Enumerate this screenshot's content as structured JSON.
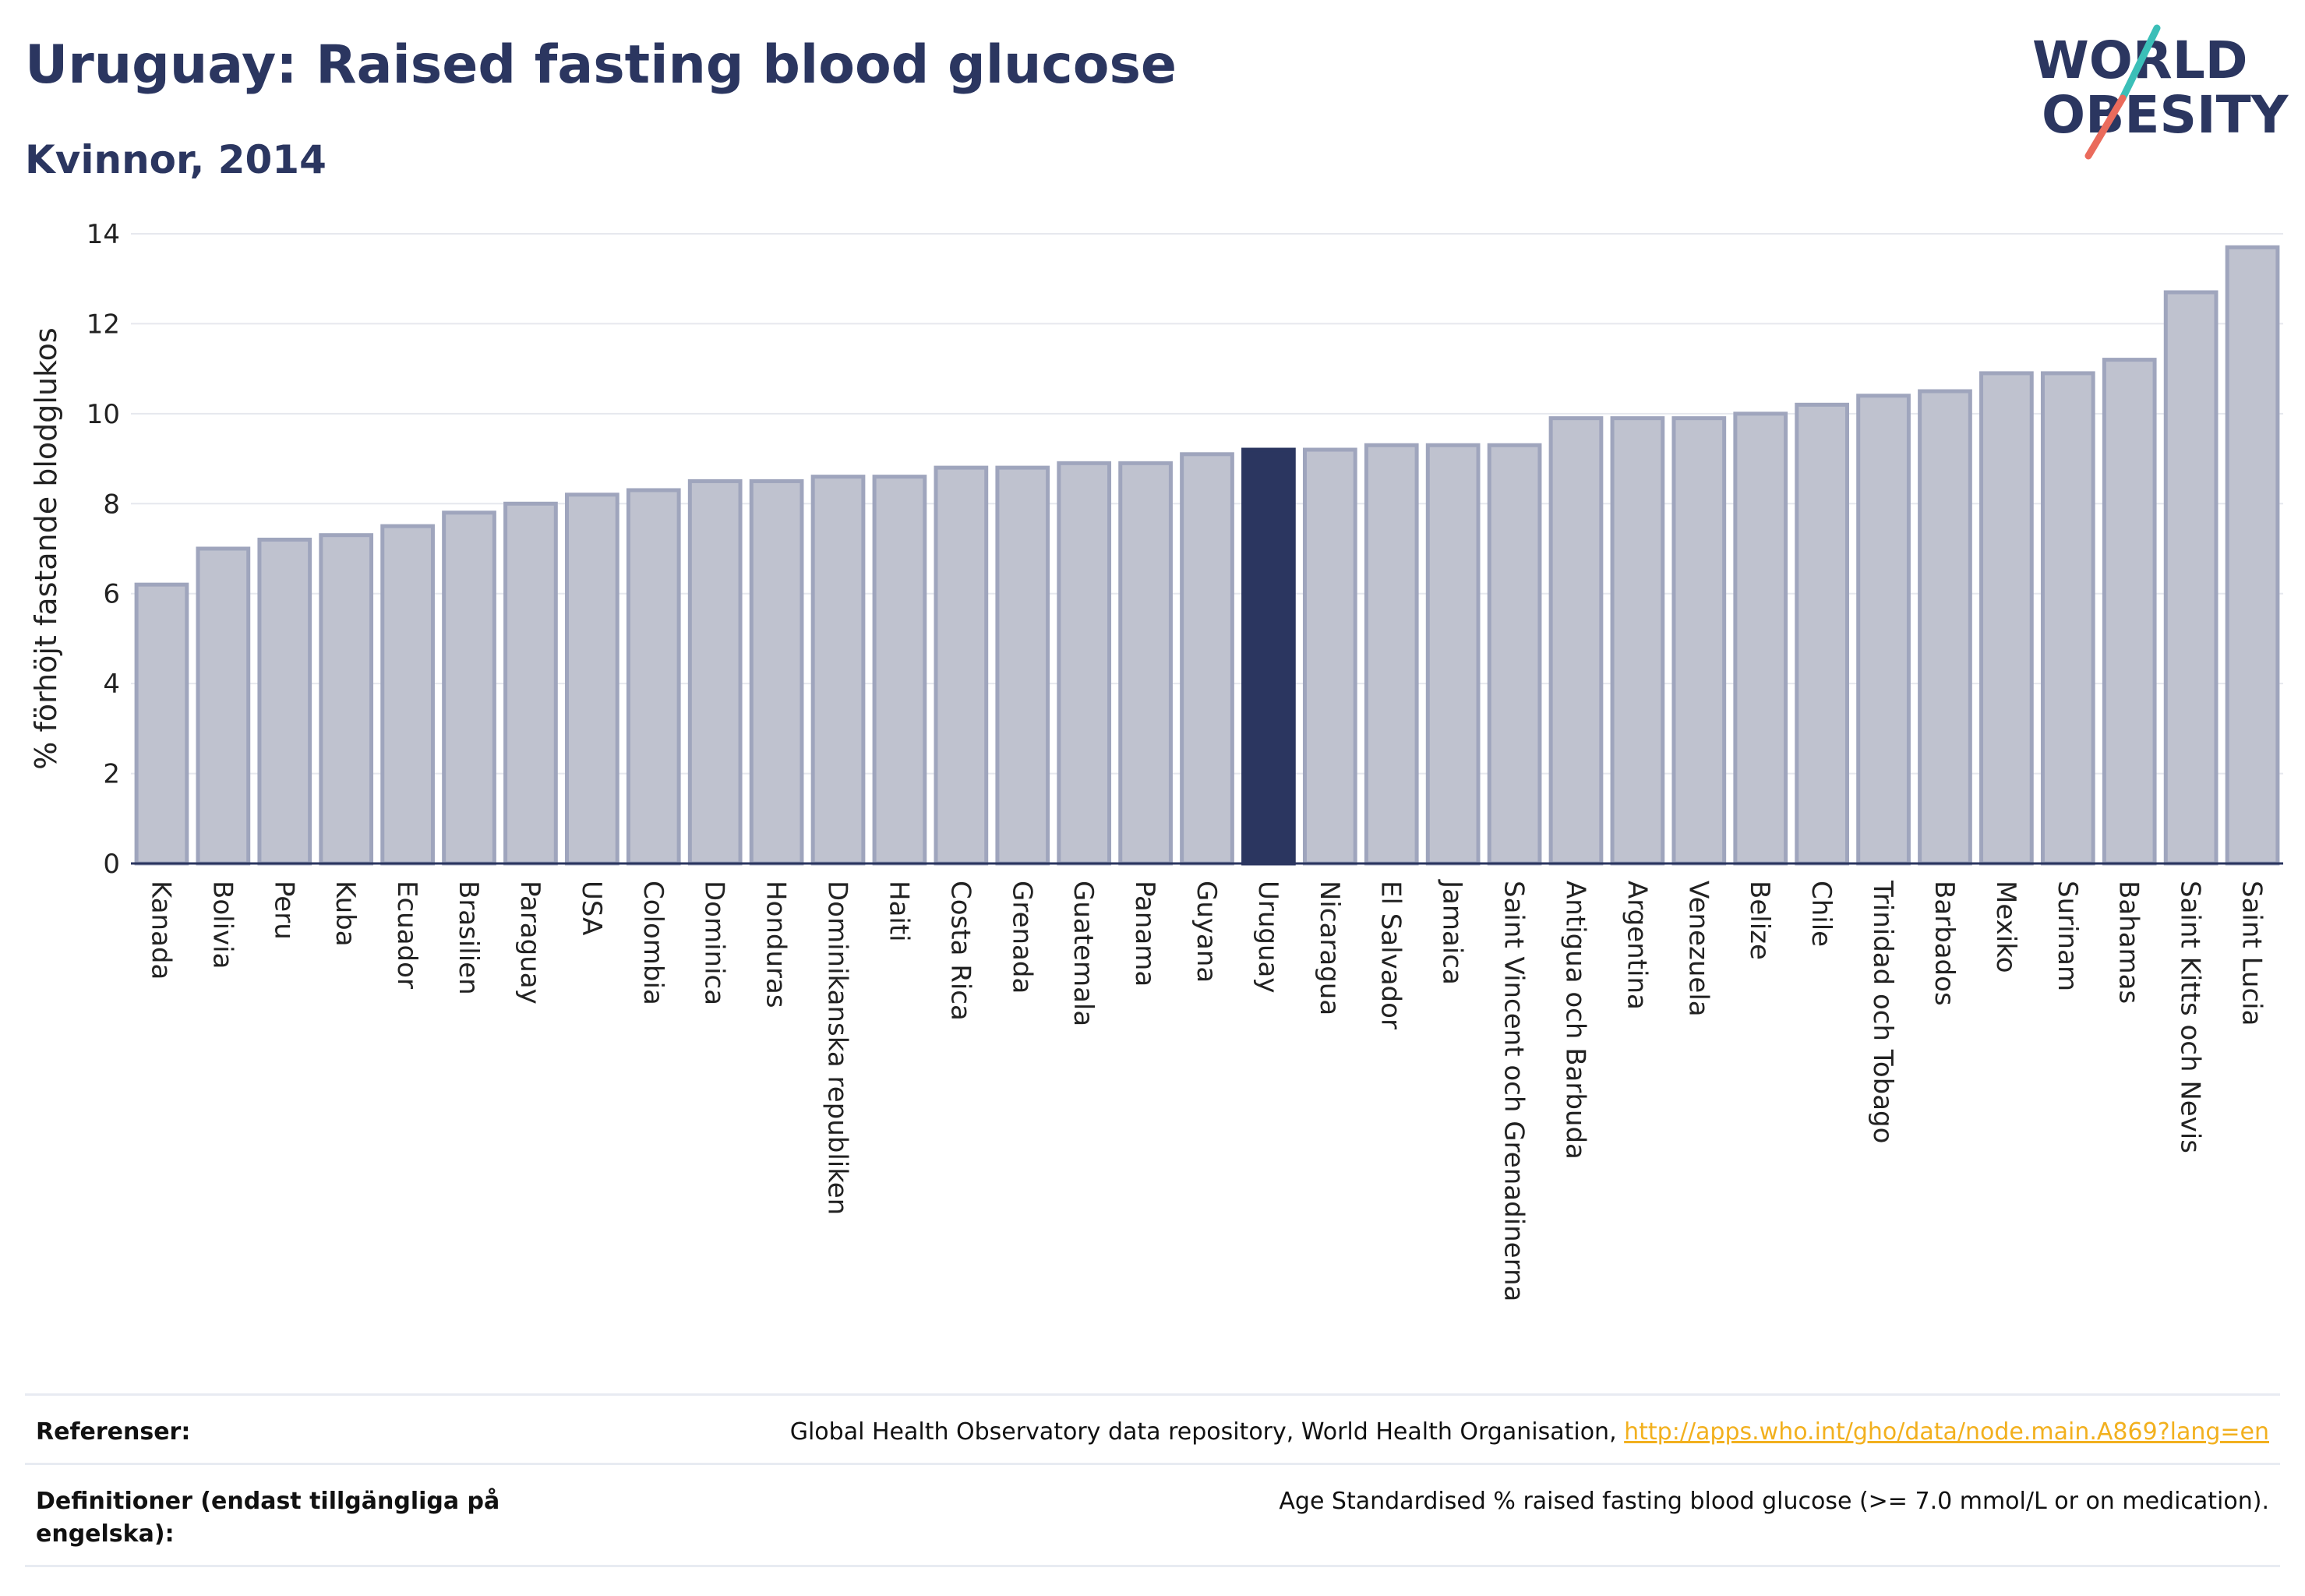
{
  "header": {
    "title": "Uruguay: Raised fasting blood glucose",
    "subtitle": "Kvinnor, 2014"
  },
  "logo": {
    "line1": "WORLD",
    "line2": "OBESITY",
    "colors": {
      "text": "#2b3660",
      "slash_teal": "#3bbfb8",
      "slash_coral": "#ea6b5c"
    }
  },
  "chart_data": {
    "type": "bar",
    "title": "Uruguay: Raised fasting blood glucose",
    "subtitle": "Kvinnor, 2014",
    "xlabel": "",
    "ylabel": "% förhöjt fastande blodglukos",
    "ylim": [
      0,
      14
    ],
    "yticks": [
      0,
      2,
      4,
      6,
      8,
      10,
      12,
      14
    ],
    "grid": true,
    "highlight": "Uruguay",
    "colors": {
      "bar": "#bfc2cf",
      "bar_edge": "#9fa5bd",
      "highlight": "#2b3660"
    },
    "categories": [
      "Kanada",
      "Bolivia",
      "Peru",
      "Kuba",
      "Ecuador",
      "Brasilien",
      "Paraguay",
      "USA",
      "Colombia",
      "Dominica",
      "Honduras",
      "Dominikanska republiken",
      "Haiti",
      "Costa Rica",
      "Grenada",
      "Guatemala",
      "Panama",
      "Guyana",
      "Uruguay",
      "Nicaragua",
      "El Salvador",
      "Jamaica",
      "Saint Vincent och Grenadinerna",
      "Antigua och Barbuda",
      "Argentina",
      "Venezuela",
      "Belize",
      "Chile",
      "Trinidad och Tobago",
      "Barbados",
      "Mexiko",
      "Surinam",
      "Bahamas",
      "Saint Kitts och Nevis",
      "Saint Lucia"
    ],
    "values": [
      6.2,
      7.0,
      7.2,
      7.3,
      7.5,
      7.8,
      8.0,
      8.2,
      8.3,
      8.5,
      8.5,
      8.6,
      8.6,
      8.8,
      8.8,
      8.9,
      8.9,
      9.1,
      9.2,
      9.2,
      9.3,
      9.3,
      9.3,
      9.9,
      9.9,
      9.9,
      10.0,
      10.2,
      10.4,
      10.5,
      10.9,
      10.9,
      11.2,
      12.7,
      13.7
    ]
  },
  "footer": {
    "references_label": "Referenser:",
    "references_text": "Global Health Observatory data repository, World Health Organisation, ",
    "references_link": "http://apps.who.int/gho/data/node.main.A869?lang=en",
    "definitions_label": "Definitioner (endast tillgängliga på engelska):",
    "definitions_text": "Age Standardised % raised fasting blood glucose (>= 7.0 mmol/L or on medication)."
  }
}
